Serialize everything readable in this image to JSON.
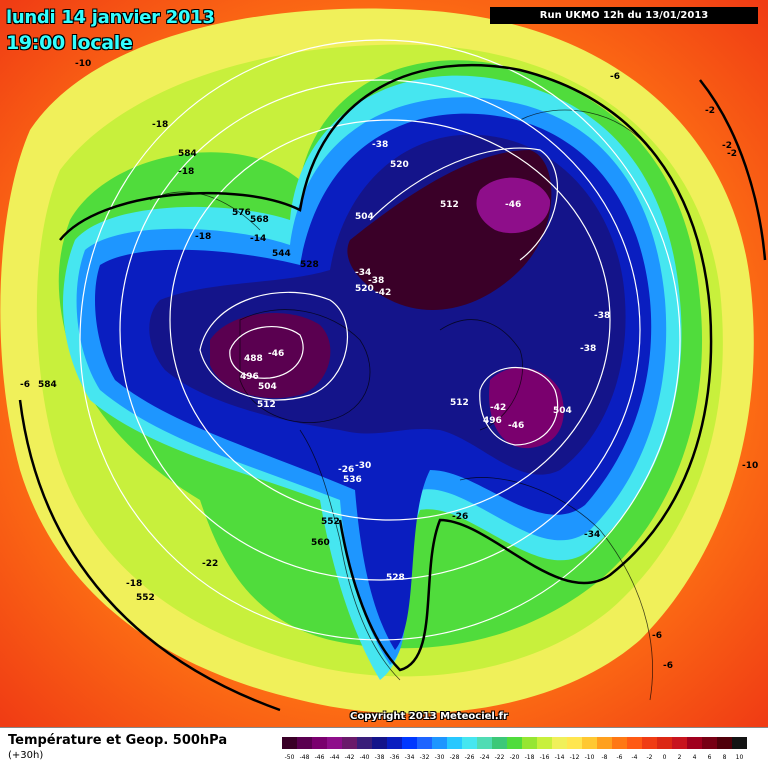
{
  "header": {
    "date": "lundi 14 janvier 2013",
    "time": "19:00 locale",
    "run": "Run UKMO 12h du 13/01/2013"
  },
  "footer": {
    "title": "Température et Geop. 500hPa",
    "subtitle": "(+30h)",
    "copyright": "Copyright 2013 Meteociel.fr"
  },
  "legend": {
    "values": [
      "-50",
      "-48",
      "-46",
      "-44",
      "-42",
      "-40",
      "-38",
      "-36",
      "-34",
      "-32",
      "-30",
      "-28",
      "-26",
      "-24",
      "-22",
      "-20",
      "-18",
      "-16",
      "-14",
      "-12",
      "-10",
      "-8",
      "-6",
      "-4",
      "-2",
      "0",
      "2",
      "4",
      "6",
      "8",
      "10"
    ],
    "colors": [
      "#3a0028",
      "#5a0050",
      "#7a006e",
      "#8e0e8a",
      "#6a1a6a",
      "#3a1e7a",
      "#14148a",
      "#0a1ec0",
      "#0038ff",
      "#1e64ff",
      "#1e96ff",
      "#28c8ff",
      "#46e6f0",
      "#50dcb4",
      "#3cc878",
      "#50dc3c",
      "#96e632",
      "#c8f03c",
      "#f0f05a",
      "#ffe650",
      "#ffc832",
      "#ffa01e",
      "#ff7814",
      "#ff5a14",
      "#f03c14",
      "#dc2814",
      "#c8141e",
      "#a0001e",
      "#780014",
      "#50000a",
      "#141414"
    ]
  },
  "labels": {
    "temperatures": [
      "-10",
      "-18",
      "-18",
      "-14",
      "-18",
      "-38",
      "-46",
      "-34",
      "-38",
      "-42",
      "-46",
      "-38",
      "-38",
      "-42",
      "-46",
      "-30",
      "-26",
      "-26",
      "-22",
      "-18",
      "-34",
      "-6",
      "-6",
      "-2",
      "-2",
      "-2",
      "-10",
      "-6",
      "-6"
    ],
    "geopotential": [
      "584",
      "576",
      "568",
      "544",
      "528",
      "520",
      "504",
      "512",
      "520",
      "488",
      "496",
      "504",
      "512",
      "512",
      "496",
      "504",
      "536",
      "552",
      "560",
      "552",
      "528",
      "584"
    ]
  }
}
